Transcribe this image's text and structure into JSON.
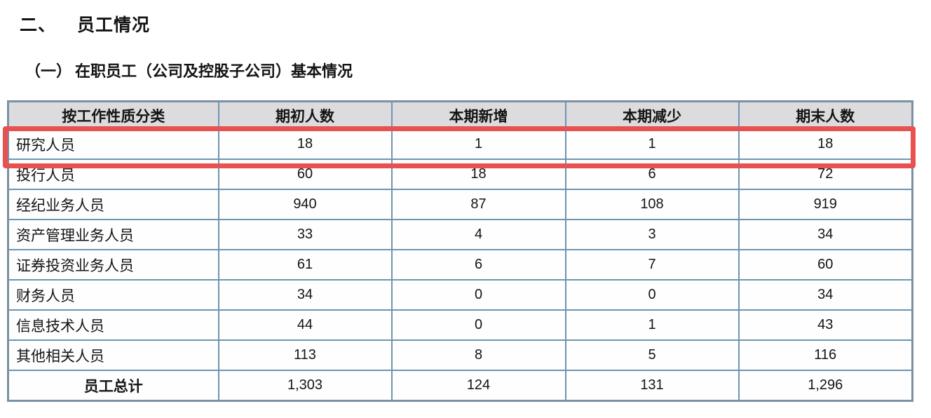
{
  "page": {
    "section_number": "二、",
    "section_title": "员工情况",
    "subsection_number": "（一）",
    "subsection_title": "在职员工（公司及控股子公司）基本情况"
  },
  "table": {
    "columns": [
      "按工作性质分类",
      "期初人数",
      "本期新增",
      "本期减少",
      "期末人数"
    ],
    "rows": [
      {
        "category": "研究人员",
        "values": [
          "18",
          "1",
          "1",
          "18"
        ],
        "highlighted": true,
        "total": false
      },
      {
        "category": "投行人员",
        "values": [
          "60",
          "18",
          "6",
          "72"
        ],
        "highlighted": false,
        "total": false
      },
      {
        "category": "经纪业务人员",
        "values": [
          "940",
          "87",
          "108",
          "919"
        ],
        "highlighted": false,
        "total": false
      },
      {
        "category": "资产管理业务人员",
        "values": [
          "33",
          "4",
          "3",
          "34"
        ],
        "highlighted": false,
        "total": false
      },
      {
        "category": "证券投资业务人员",
        "values": [
          "61",
          "6",
          "7",
          "60"
        ],
        "highlighted": false,
        "total": false
      },
      {
        "category": "财务人员",
        "values": [
          "34",
          "0",
          "0",
          "34"
        ],
        "highlighted": false,
        "total": false
      },
      {
        "category": "信息技术人员",
        "values": [
          "44",
          "0",
          "1",
          "43"
        ],
        "highlighted": false,
        "total": false
      },
      {
        "category": "其他相关人员",
        "values": [
          "113",
          "8",
          "5",
          "116"
        ],
        "highlighted": false,
        "total": false
      },
      {
        "category": "员工总计",
        "values": [
          "1,303",
          "124",
          "131",
          "1,296"
        ],
        "highlighted": false,
        "total": true
      }
    ]
  },
  "colors": {
    "table_border": "#6e95b0",
    "table_outer_border": "#7b91a3",
    "header_bg": "#dcdcde",
    "highlight_border": "#e85150",
    "text": "#141414"
  }
}
